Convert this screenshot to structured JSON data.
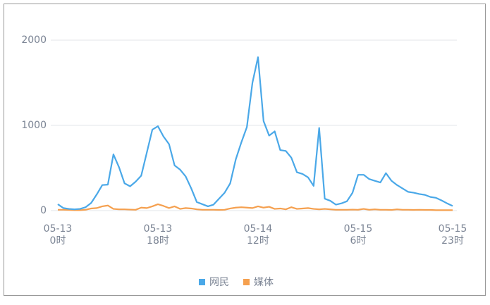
{
  "chart_data": {
    "type": "line",
    "categories": [
      "05-13 0时",
      null,
      null,
      null,
      null,
      null,
      null,
      null,
      null,
      null,
      null,
      null,
      null,
      null,
      null,
      null,
      null,
      null,
      "05-13 18时",
      null,
      null,
      null,
      null,
      null,
      null,
      null,
      null,
      null,
      null,
      null,
      null,
      null,
      null,
      null,
      null,
      null,
      "05-14 12时",
      null,
      null,
      null,
      null,
      null,
      null,
      null,
      null,
      null,
      null,
      null,
      null,
      null,
      null,
      null,
      null,
      null,
      "05-15 6时",
      null,
      null,
      null,
      null,
      null,
      null,
      null,
      null,
      null,
      null,
      null,
      null,
      null,
      null,
      null,
      null,
      "05-15 23时"
    ],
    "series": [
      {
        "name": "网民",
        "color": "#4aa8e8",
        "values": [
          75,
          30,
          20,
          15,
          20,
          40,
          90,
          190,
          300,
          305,
          660,
          510,
          320,
          285,
          340,
          410,
          680,
          950,
          990,
          870,
          780,
          530,
          480,
          400,
          260,
          100,
          75,
          50,
          70,
          140,
          210,
          320,
          600,
          800,
          980,
          1500,
          1800,
          1050,
          880,
          930,
          710,
          700,
          620,
          450,
          430,
          390,
          290,
          970,
          140,
          115,
          70,
          85,
          110,
          210,
          420,
          420,
          370,
          350,
          330,
          440,
          350,
          300,
          260,
          220,
          210,
          195,
          185,
          160,
          150,
          120,
          85,
          55
        ]
      },
      {
        "name": "媒体",
        "color": "#f5a04f",
        "values": [
          10,
          10,
          8,
          5,
          5,
          10,
          25,
          30,
          50,
          60,
          20,
          15,
          15,
          12,
          10,
          35,
          30,
          50,
          75,
          55,
          30,
          50,
          20,
          30,
          25,
          15,
          10,
          10,
          10,
          8,
          10,
          25,
          35,
          40,
          35,
          30,
          50,
          35,
          45,
          20,
          25,
          15,
          40,
          20,
          25,
          30,
          20,
          15,
          20,
          15,
          10,
          10,
          10,
          12,
          10,
          20,
          10,
          15,
          10,
          10,
          8,
          15,
          10,
          10,
          8,
          10,
          8,
          8,
          5,
          5,
          5,
          5
        ]
      }
    ],
    "ylim": [
      0,
      2000
    ],
    "yticks": [
      0,
      1000,
      2000
    ],
    "grid": true,
    "legend": "bottom"
  }
}
